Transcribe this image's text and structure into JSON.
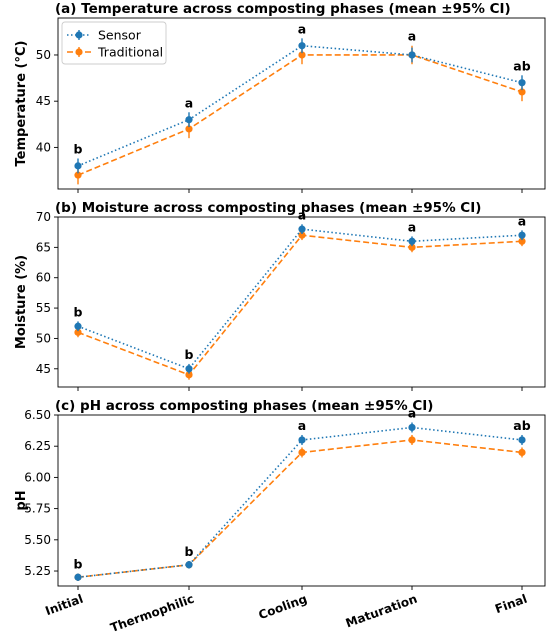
{
  "chart_data": [
    {
      "type": "line",
      "title": "(a) Temperature across composting phases (mean ±95% CI)",
      "xlabel": "",
      "ylabel": "Temperature (°C)",
      "categories": [
        "Initial",
        "Thermophilic",
        "Cooling",
        "Maturation",
        "Final"
      ],
      "ylim": [
        35.5,
        54
      ],
      "yticks": [
        40,
        45,
        50
      ],
      "grid": false,
      "legend": "top-left",
      "series": [
        {
          "name": "Sensor",
          "color": "#1f77b4",
          "linestyle": "dotted",
          "values": [
            38,
            43,
            51,
            50,
            47
          ],
          "ci": [
            0.8,
            0.8,
            0.8,
            0.8,
            0.8
          ]
        },
        {
          "name": "Traditional",
          "color": "#ff7f0e",
          "linestyle": "dashed",
          "values": [
            37,
            42,
            50,
            50,
            46
          ],
          "ci": [
            1.0,
            1.0,
            1.0,
            1.0,
            1.0
          ]
        }
      ],
      "annotations": [
        "b",
        "a",
        "a",
        "a",
        "ab"
      ]
    },
    {
      "type": "line",
      "title": "(b) Moisture across composting phases (mean ±95% CI)",
      "xlabel": "",
      "ylabel": "Moisture (%)",
      "categories": [
        "Initial",
        "Thermophilic",
        "Cooling",
        "Maturation",
        "Final"
      ],
      "ylim": [
        42,
        70
      ],
      "yticks": [
        45,
        50,
        55,
        60,
        65,
        70
      ],
      "grid": false,
      "series": [
        {
          "name": "Sensor",
          "color": "#1f77b4",
          "linestyle": "dotted",
          "values": [
            52,
            45,
            68,
            66,
            67
          ],
          "ci": [
            0.8,
            0.8,
            0.8,
            0.8,
            0.8
          ]
        },
        {
          "name": "Traditional",
          "color": "#ff7f0e",
          "linestyle": "dashed",
          "values": [
            51,
            44,
            67,
            65,
            66
          ],
          "ci": [
            0.8,
            0.8,
            0.8,
            0.8,
            0.8
          ]
        }
      ],
      "annotations": [
        "b",
        "b",
        "a",
        "a",
        "a"
      ]
    },
    {
      "type": "line",
      "title": "(c) pH across composting phases (mean ±95% CI)",
      "xlabel": "",
      "ylabel": "pH",
      "categories": [
        "Initial",
        "Thermophilic",
        "Cooling",
        "Maturation",
        "Final"
      ],
      "ylim": [
        5.13,
        6.5
      ],
      "yticks": [
        5.25,
        5.5,
        5.75,
        6.0,
        6.25,
        6.5
      ],
      "grid": false,
      "series": [
        {
          "name": "Sensor",
          "color": "#1f77b4",
          "linestyle": "dotted",
          "values": [
            5.2,
            5.3,
            6.3,
            6.4,
            6.3
          ],
          "ci": [
            0.03,
            0.03,
            0.04,
            0.04,
            0.04
          ]
        },
        {
          "name": "Traditional",
          "color": "#ff7f0e",
          "linestyle": "dashed",
          "values": [
            5.2,
            5.3,
            6.2,
            6.3,
            6.2
          ],
          "ci": [
            0.03,
            0.03,
            0.04,
            0.04,
            0.04
          ]
        }
      ],
      "annotations": [
        "b",
        "b",
        "a",
        "a",
        "ab"
      ]
    }
  ]
}
